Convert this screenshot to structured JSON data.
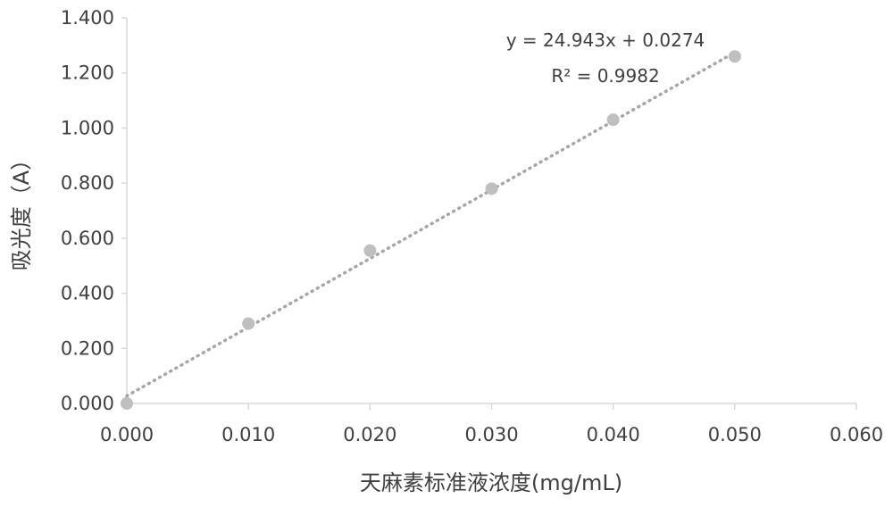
{
  "chart_data": {
    "type": "scatter",
    "xlabel": "天麻素标准液浓度(mg/mL)",
    "ylabel": "吸光度（A）",
    "xlim": [
      0,
      0.06
    ],
    "ylim": [
      0,
      1.4
    ],
    "x_ticks": [
      "0.000",
      "0.010",
      "0.020",
      "0.030",
      "0.040",
      "0.050",
      "0.060"
    ],
    "y_ticks": [
      "0.000",
      "0.200",
      "0.400",
      "0.600",
      "0.800",
      "1.000",
      "1.200",
      "1.400"
    ],
    "x_tick_values": [
      0,
      0.01,
      0.02,
      0.03,
      0.04,
      0.05,
      0.06
    ],
    "y_tick_values": [
      0,
      0.2,
      0.4,
      0.6,
      0.8,
      1.0,
      1.2,
      1.4
    ],
    "points": [
      {
        "x": 0.0,
        "y": 0.0
      },
      {
        "x": 0.01,
        "y": 0.29
      },
      {
        "x": 0.02,
        "y": 0.555
      },
      {
        "x": 0.03,
        "y": 0.78
      },
      {
        "x": 0.04,
        "y": 1.03
      },
      {
        "x": 0.05,
        "y": 1.26
      }
    ],
    "trendline": {
      "type": "linear",
      "slope": 24.943,
      "intercept": 0.0274,
      "style": "dotted"
    },
    "equation_label": "y = 24.943x + 0.0274",
    "r2_label": "R² = 0.9982",
    "grid": false,
    "colors": {
      "points": "#bfbfbf",
      "trendline": "#a6a6a6",
      "axis": "#d9d9d9",
      "text": "#404040"
    }
  }
}
